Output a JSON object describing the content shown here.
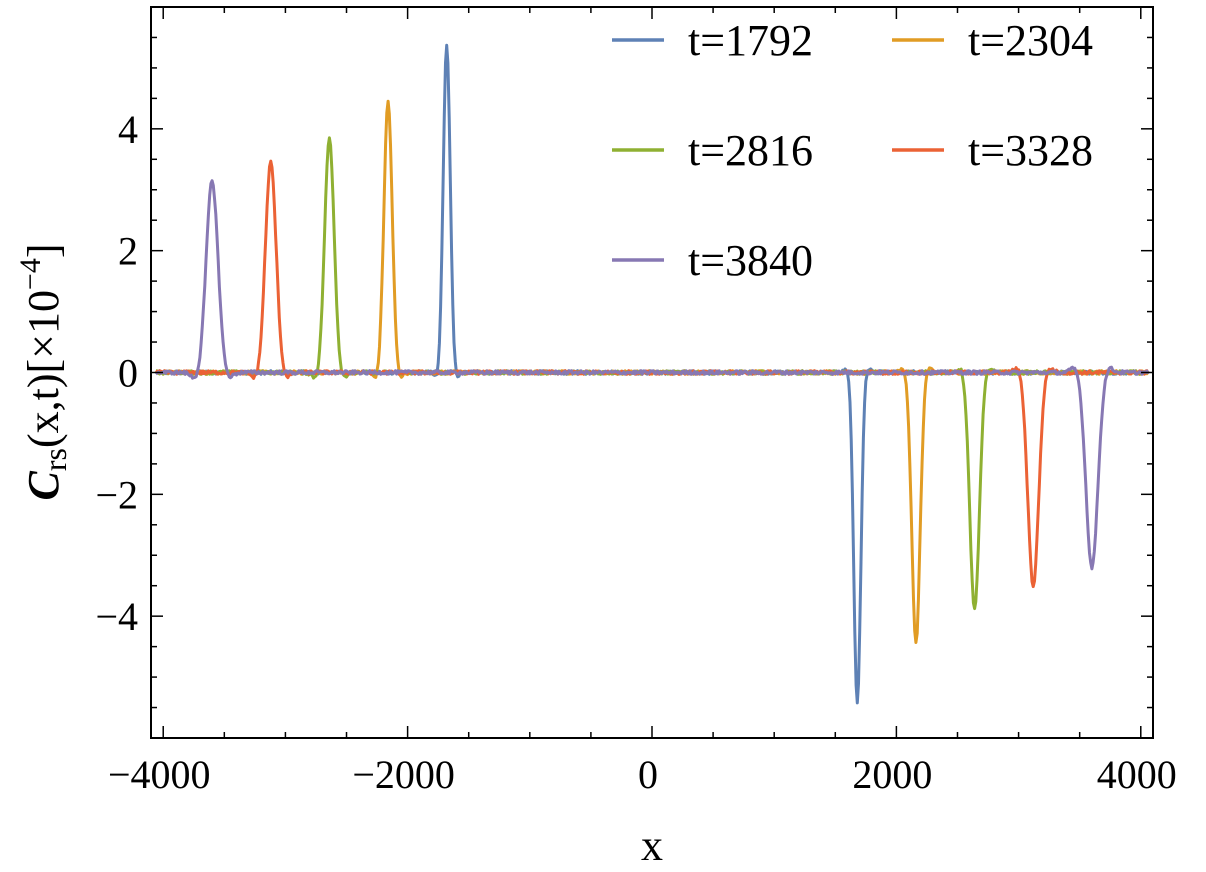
{
  "chart_data": {
    "type": "line",
    "xlabel": "x",
    "ylabel": {
      "symbol": "C",
      "subscript": "rs",
      "args": "(x,t)",
      "scale_prefix": "[×10",
      "scale_exponent": "−4",
      "scale_suffix": "]"
    },
    "xlim": [
      -4100,
      4100
    ],
    "ylim": [
      -6.0,
      6.0
    ],
    "xticks": [
      -4000,
      -2000,
      0,
      2000,
      4000
    ],
    "xtick_labels": [
      "−4000",
      "−2000",
      "0",
      "2000",
      "4000"
    ],
    "yticks": [
      -4,
      -2,
      0,
      2,
      4
    ],
    "ytick_labels": [
      "−4",
      "−2",
      "0",
      "2",
      "4"
    ],
    "grid": false,
    "legend_position": "top-right",
    "series": [
      {
        "name": "t=1792",
        "color": "#5E81B5",
        "peak_x": -1680,
        "peak_y": 5.4,
        "trough_x": 1680,
        "trough_y": -5.45,
        "width": 40
      },
      {
        "name": "t=2304",
        "color": "#E19C24",
        "peak_x": -2160,
        "peak_y": 4.45,
        "trough_x": 2160,
        "trough_y": -4.45,
        "width": 48
      },
      {
        "name": "t=2816",
        "color": "#8FB032",
        "peak_x": -2640,
        "peak_y": 3.85,
        "trough_x": 2640,
        "trough_y": -3.9,
        "width": 55
      },
      {
        "name": "t=3328",
        "color": "#EB6235",
        "peak_x": -3120,
        "peak_y": 3.45,
        "trough_x": 3120,
        "trough_y": -3.5,
        "width": 62
      },
      {
        "name": "t=3840",
        "color": "#8778B3",
        "peak_x": -3600,
        "peak_y": 3.15,
        "trough_x": 3600,
        "trough_y": -3.2,
        "width": 68
      }
    ]
  }
}
